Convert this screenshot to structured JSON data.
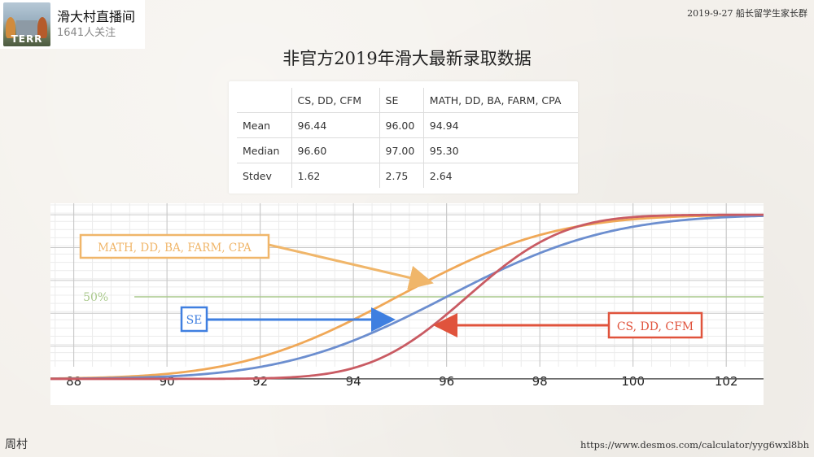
{
  "channel": {
    "name": "滑大村直播间",
    "followers": "1641人关注",
    "avatar_text": "TERR"
  },
  "header": {
    "date_source": "2019-9-27 船长留学生家长群"
  },
  "title": "非官方2019年滑大最新录取数据",
  "stats_table": {
    "headers": [
      "",
      "CS, DD, CFM",
      "SE",
      "MATH, DD, BA, FARM, CPA"
    ],
    "rows": [
      [
        "Mean",
        "96.44",
        "96.00",
        "94.94"
      ],
      [
        "Median",
        "96.60",
        "97.00",
        "95.30"
      ],
      [
        "Stdev",
        "1.62",
        "2.75",
        "2.64"
      ]
    ]
  },
  "chart_data": {
    "type": "line",
    "xlim": [
      87.5,
      102.8
    ],
    "ylim": [
      -0.04,
      1.07
    ],
    "xticks": [
      88,
      90,
      92,
      94,
      96,
      98,
      100,
      102
    ],
    "grid": true,
    "series": [
      {
        "name": "MATH, DD, BA, FARM, CPA",
        "mean": 94.94,
        "stdev": 2.64,
        "color": "#f0a857"
      },
      {
        "name": "SE",
        "mean": 96.0,
        "stdev": 2.75,
        "color": "#6c8ecf"
      },
      {
        "name": "CS, DD, CFM",
        "mean": 96.44,
        "stdev": 1.62,
        "color": "#c95b63"
      }
    ],
    "reference_line": {
      "label": "50%",
      "y": 0.5,
      "color": "#a9c98b"
    },
    "annotations": [
      {
        "label": "MATH, DD, BA, FARM, CPA",
        "color": "#f0b66a"
      },
      {
        "label": "SE",
        "color": "#3f7fe0"
      },
      {
        "label": "CS, DD, CFM",
        "color": "#e0533c"
      }
    ]
  },
  "footer": {
    "left": "周村",
    "right": "https://www.desmos.com/calculator/yyg6wxl8bh"
  }
}
